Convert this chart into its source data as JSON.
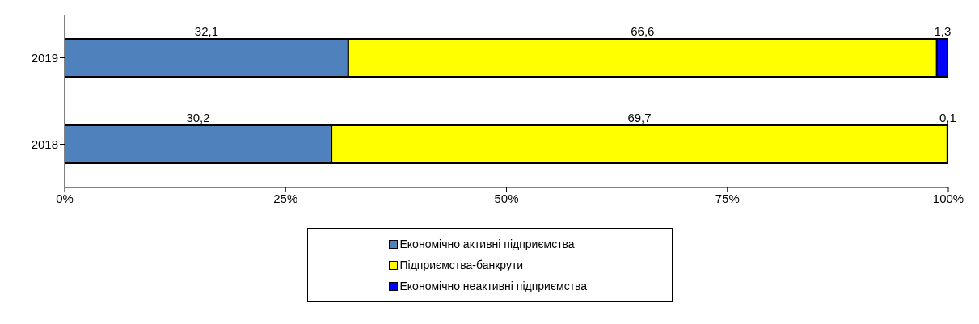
{
  "chart_data": {
    "type": "bar",
    "orientation": "horizontal",
    "stacked": true,
    "categories": [
      "2019",
      "2018"
    ],
    "series": [
      {
        "name": "Економічно активні підприємства",
        "color": "#4f81bd",
        "values": [
          32.1,
          30.2
        ],
        "value_labels": [
          "32,1",
          "30,2"
        ]
      },
      {
        "name": "Підприємства-банкрути",
        "color": "#ffff00",
        "values": [
          66.6,
          69.7
        ],
        "value_labels": [
          "66,6",
          "69,7"
        ]
      },
      {
        "name": "Економічно неактивні підприємства",
        "color": "#0000ff",
        "values": [
          1.3,
          0.1
        ],
        "value_labels": [
          "1,3",
          "0,1"
        ]
      }
    ],
    "xlim": [
      0,
      100
    ],
    "xticks": [
      {
        "value": 0,
        "label": "0%"
      },
      {
        "value": 25,
        "label": "25%"
      },
      {
        "value": 50,
        "label": "50%"
      },
      {
        "value": 75,
        "label": "75%"
      },
      {
        "value": 100,
        "label": "100%"
      }
    ],
    "grid": false,
    "legend": "bottom"
  }
}
